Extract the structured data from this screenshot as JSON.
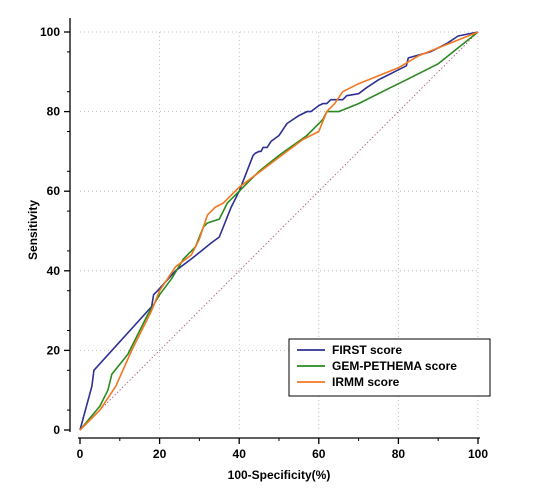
{
  "chart_data": {
    "type": "line",
    "title": "",
    "xlabel": "100-Specificity(%)",
    "ylabel": "Sensitivity",
    "xlim": [
      0,
      100
    ],
    "ylim": [
      0,
      100
    ],
    "xticks": [
      0,
      20,
      40,
      60,
      80,
      100
    ],
    "yticks": [
      0,
      20,
      40,
      60,
      80,
      100
    ],
    "grid": "dotted",
    "legend_position": "bottom-right",
    "reference_line": {
      "x": [
        0,
        100
      ],
      "y": [
        0,
        100
      ],
      "color": "#b06080",
      "style": "dotted"
    },
    "series": [
      {
        "name": "FIRST score",
        "color": "#2e3192",
        "x": [
          0,
          3,
          3.5,
          18,
          18.5,
          19.5,
          24,
          28,
          33,
          35,
          38,
          40,
          43.5,
          44,
          45,
          45.5,
          46,
          47,
          48,
          50,
          52,
          55,
          57,
          58,
          60,
          61,
          62,
          63,
          66,
          67,
          70,
          72,
          75,
          80,
          82,
          82.5,
          88,
          90,
          92,
          95,
          100
        ],
        "y": [
          0,
          11,
          15,
          31,
          34,
          35,
          40,
          43,
          47,
          48.5,
          56,
          60,
          69,
          69.5,
          70,
          70,
          71,
          71,
          72.5,
          74,
          77,
          79,
          80,
          80,
          81.5,
          82,
          82,
          83,
          83,
          84,
          84.5,
          86,
          88,
          90.5,
          91.5,
          93.5,
          95,
          96,
          97,
          99,
          100
        ]
      },
      {
        "name": "GEM-PETHEMA score",
        "color": "#2a8a1f",
        "x": [
          0,
          5,
          7,
          8,
          12,
          17,
          20,
          23,
          26,
          29,
          31,
          32,
          35,
          37,
          40,
          45,
          50,
          57,
          61,
          62,
          65,
          70,
          78,
          82,
          90,
          100
        ],
        "y": [
          0,
          6,
          10,
          14,
          19,
          29,
          34,
          38,
          43,
          46,
          51,
          52,
          53,
          57,
          60,
          65,
          69,
          74,
          78,
          80,
          80,
          82,
          86,
          88,
          92,
          100
        ]
      },
      {
        "name": "IRMM score",
        "color": "#f07820",
        "x": [
          0,
          2,
          5,
          9,
          13,
          18,
          20,
          24,
          28,
          30,
          32,
          34,
          36,
          40,
          44,
          48,
          52,
          56,
          60,
          62,
          64,
          66,
          70,
          75,
          80,
          85,
          90,
          95,
          100
        ],
        "y": [
          0,
          2,
          5,
          11,
          20,
          30,
          35,
          41,
          44,
          48,
          54,
          56,
          57,
          61,
          64,
          67,
          70,
          73,
          75,
          80,
          82,
          85,
          87,
          89,
          91,
          94,
          96,
          98,
          100
        ]
      }
    ]
  }
}
